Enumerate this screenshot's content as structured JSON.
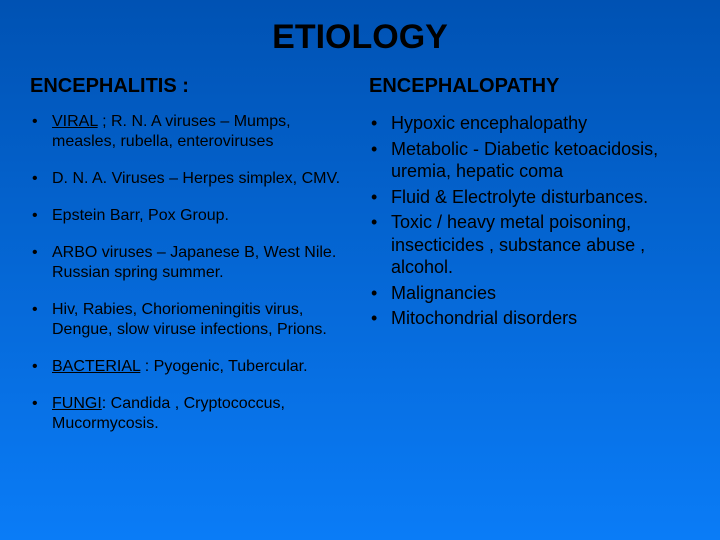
{
  "colors": {
    "bg_top": "#0052b3",
    "bg_bottom": "#0a7cf7",
    "text": "#000000"
  },
  "fonts": {
    "title_size": 34,
    "subhead_size": 20,
    "body_left_size": 16,
    "body_right_size": 18
  },
  "title": "ETIOLOGY",
  "left": {
    "heading": "ENCEPHALITIS :",
    "items": [
      {
        "prefix": "VIRAL",
        "prefix_underline": true,
        "rest": " ;  R. N. A viruses – Mumps, measles, rubella, enteroviruses"
      },
      {
        "prefix": "",
        "prefix_underline": false,
        "rest": "D. N. A. Viruses – Herpes simplex, CMV."
      },
      {
        "prefix": "",
        "prefix_underline": false,
        "rest": "Epstein Barr, Pox Group."
      },
      {
        "prefix": "",
        "prefix_underline": false,
        "rest": "ARBO viruses – Japanese B, West Nile. Russian spring summer."
      },
      {
        "prefix": "",
        "prefix_underline": false,
        "rest": "Hiv, Rabies, Choriomeningitis virus, Dengue, slow viruse infections, Prions."
      },
      {
        "prefix": "BACTERIAL",
        "prefix_underline": true,
        "rest": " : Pyogenic, Tubercular."
      },
      {
        "prefix": "FUNGI",
        "prefix_underline": true,
        "rest": ": Candida , Cryptococcus, Mucormycosis."
      }
    ]
  },
  "right": {
    "heading": "ENCEPHALOPATHY",
    "items": [
      "Hypoxic encephalopathy",
      " Metabolic - Diabetic ketoacidosis, uremia, hepatic coma",
      " Fluid & Electrolyte disturbances.",
      " Toxic / heavy metal poisoning, insecticides , substance abuse , alcohol.",
      " Malignancies",
      " Mitochondrial disorders"
    ]
  }
}
